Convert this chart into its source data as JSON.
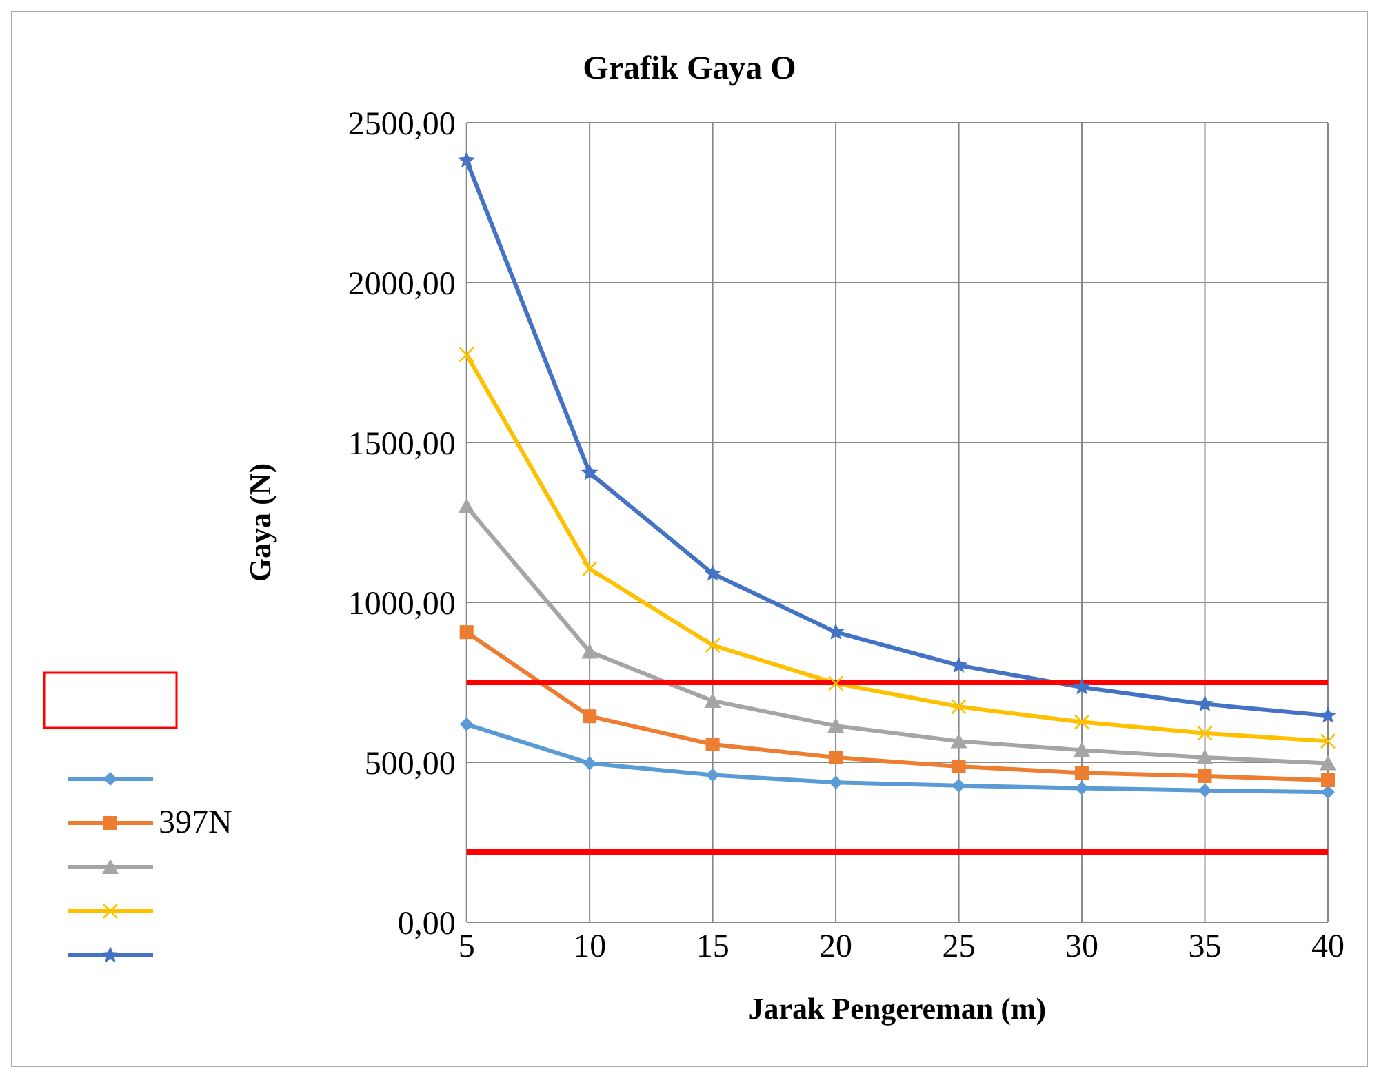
{
  "chart_data": {
    "type": "line",
    "title": "Grafik Gaya O",
    "xlabel": "Jarak Pengereman (m)",
    "ylabel": "Gaya (N)",
    "categories": [
      "5",
      "10",
      "15",
      "20",
      "25",
      "30",
      "35",
      "40"
    ],
    "series": [
      {
        "color": "#5b9bd5",
        "marker": "diamond",
        "values": [
          619,
          497,
          460,
          437,
          427,
          419,
          412,
          407
        ]
      },
      {
        "name": "397N",
        "color": "#ed7d31",
        "marker": "square",
        "values": [
          907,
          644,
          556,
          515,
          487,
          467,
          457,
          444
        ]
      },
      {
        "color": "#a5a5a5",
        "marker": "triangle",
        "values": [
          1300,
          846,
          692,
          614,
          566,
          538,
          515,
          497
        ]
      },
      {
        "color": "#ffc000",
        "marker": "cross",
        "values": [
          1775,
          1105,
          866,
          747,
          674,
          626,
          591,
          566
        ]
      },
      {
        "color": "#4472c4",
        "marker": "star",
        "values": [
          2382,
          1405,
          1090,
          907,
          803,
          735,
          682,
          646
        ]
      }
    ],
    "ylim": [
      0,
      2500
    ],
    "yticks": [
      {
        "value": 0,
        "label": "0,00"
      },
      {
        "value": 500,
        "label": "500,00"
      },
      {
        "value": 1000,
        "label": "1000,00"
      },
      {
        "value": 1500,
        "label": "1500,00"
      },
      {
        "value": 2000,
        "label": "2000,00"
      },
      {
        "value": 2500,
        "label": "2500,00"
      }
    ],
    "grid": true,
    "legend": "left",
    "line_style": "solid",
    "ref_lines": [
      {
        "axis": "y",
        "value": 750,
        "color": "#ff0000"
      },
      {
        "axis": "y",
        "value": 220,
        "color": "#ff0000"
      }
    ]
  }
}
